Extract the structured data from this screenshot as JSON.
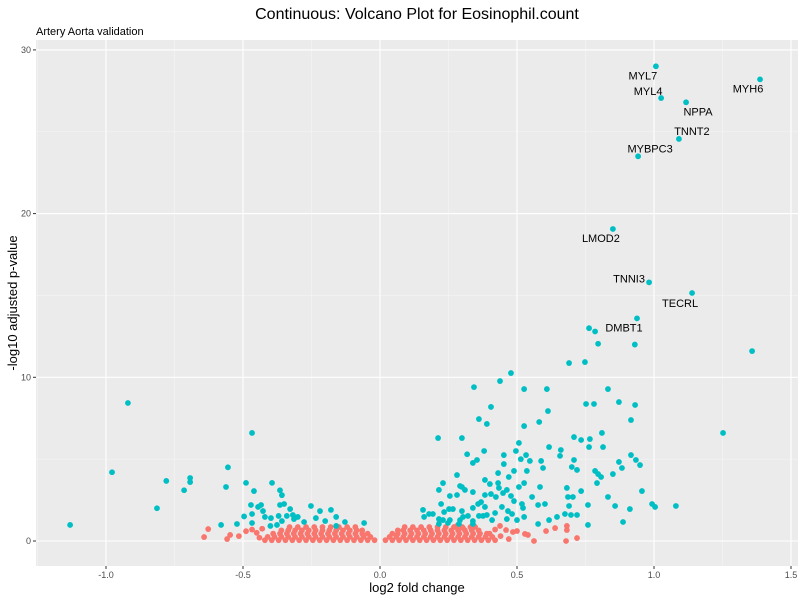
{
  "chart_data": {
    "type": "scatter",
    "title": "Continuous: Volcano Plot for Eosinophil.count",
    "subtitle": "Artery Aorta validation",
    "xlabel": "log2 fold change",
    "ylabel": "-log10 adjusted p-value",
    "xlim": [
      -1.25,
      1.53
    ],
    "ylim": [
      -1.5,
      30.5
    ],
    "x_ticks": [
      -1.0,
      -0.5,
      0.0,
      0.5,
      1.0,
      1.5
    ],
    "x_tick_labels": [
      "-1.0",
      "-0.5",
      "0.0",
      "0.5",
      "1.0",
      "1.5"
    ],
    "y_ticks": [
      0,
      10,
      20,
      30
    ],
    "y_tick_labels": [
      "0",
      "10",
      "20",
      "30"
    ],
    "grid": true,
    "legend": "none",
    "colors": {
      "significant": "#00BFC4",
      "not_significant": "#F8766D",
      "panel": "#EBEBEB"
    },
    "labeled_points": [
      {
        "label": "MYL7",
        "x": 1.007,
        "y": 29.0
      },
      {
        "label": "MYH6",
        "x": 1.387,
        "y": 28.2
      },
      {
        "label": "MYL4",
        "x": 1.026,
        "y": 27.06
      },
      {
        "label": "NPPA",
        "x": 1.117,
        "y": 26.8
      },
      {
        "label": "TNNT2",
        "x": 1.091,
        "y": 24.56
      },
      {
        "label": "MYBPC3",
        "x": 0.942,
        "y": 23.5
      },
      {
        "label": "LMOD2",
        "x": 0.85,
        "y": 19.06
      },
      {
        "label": "TNNI3",
        "x": 0.982,
        "y": 15.8
      },
      {
        "label": "TECRL",
        "x": 1.139,
        "y": 15.15
      },
      {
        "label": "DMBT1",
        "x": 0.938,
        "y": 13.6
      }
    ],
    "significant_points": [
      [
        0.763,
        13.0
      ],
      [
        0.785,
        12.8
      ],
      [
        0.796,
        12.05
      ],
      [
        0.93,
        12.0
      ],
      [
        1.358,
        11.6
      ],
      [
        -0.92,
        8.43
      ],
      [
        -0.467,
        6.6
      ],
      [
        -0.978,
        4.2
      ],
      [
        -0.555,
        4.5
      ],
      [
        -0.78,
        3.67
      ],
      [
        -0.693,
        3.85
      ],
      [
        -0.693,
        3.6
      ],
      [
        -0.715,
        3.1
      ],
      [
        -0.814,
        2.0
      ],
      [
        -1.131,
        0.98
      ],
      [
        -0.562,
        3.3
      ],
      [
        -0.489,
        3.55
      ],
      [
        -0.46,
        3.05
      ],
      [
        -0.394,
        3.55
      ],
      [
        -0.365,
        3.1
      ],
      [
        -0.358,
        2.8
      ],
      [
        -0.58,
        0.98
      ],
      [
        -0.522,
        1.04
      ],
      [
        -0.496,
        1.5
      ],
      [
        -0.471,
        2.2
      ],
      [
        -0.445,
        2.08
      ],
      [
        -0.434,
        2.2
      ],
      [
        -0.427,
        1.83
      ],
      [
        -0.467,
        1.65
      ],
      [
        -0.42,
        1.47
      ],
      [
        -0.398,
        1.4
      ],
      [
        -0.365,
        2.2
      ],
      [
        -0.35,
        2.26
      ],
      [
        -0.328,
        1.95
      ],
      [
        -0.37,
        1.53
      ],
      [
        -0.34,
        1.53
      ],
      [
        -0.318,
        1.59
      ],
      [
        -0.3,
        1.47
      ],
      [
        -0.277,
        1.16
      ],
      [
        -0.252,
        2.14
      ],
      [
        -0.219,
        1.83
      ],
      [
        -0.179,
        1.9
      ],
      [
        -0.234,
        1.4
      ],
      [
        -0.2,
        1.22
      ],
      [
        -0.16,
        1.47
      ],
      [
        -0.128,
        1.16
      ],
      [
        -0.058,
        1.1
      ],
      [
        -0.4,
        0.92
      ],
      [
        -0.16,
        0.92
      ],
      [
        -0.467,
        1.1
      ],
      [
        -0.358,
        1.22
      ],
      [
        -0.314,
        1.34
      ],
      [
        -0.376,
        0.98
      ],
      [
        0.69,
        10.87
      ],
      [
        0.748,
        10.93
      ],
      [
        0.478,
        10.26
      ],
      [
        0.438,
        9.77
      ],
      [
        0.343,
        9.4
      ],
      [
        0.526,
        9.28
      ],
      [
        0.609,
        9.28
      ],
      [
        0.832,
        9.28
      ],
      [
        0.752,
        8.37
      ],
      [
        0.781,
        8.37
      ],
      [
        0.872,
        8.49
      ],
      [
        0.931,
        8.31
      ],
      [
        0.405,
        8.19
      ],
      [
        0.613,
        7.94
      ],
      [
        0.361,
        7.45
      ],
      [
        0.39,
        7.15
      ],
      [
        0.581,
        7.27
      ],
      [
        0.526,
        7.02
      ],
      [
        0.916,
        7.39
      ],
      [
        1.252,
        6.6
      ],
      [
        0.81,
        6.6
      ],
      [
        0.212,
        6.29
      ],
      [
        0.299,
        6.29
      ],
      [
        0.708,
        6.35
      ],
      [
        0.734,
        6.17
      ],
      [
        0.766,
        6.23
      ],
      [
        0.763,
        5.74
      ],
      [
        0.814,
        5.74
      ],
      [
        0.507,
        5.99
      ],
      [
        0.617,
        5.74
      ],
      [
        0.66,
        5.56
      ],
      [
        0.657,
        5.2
      ],
      [
        0.38,
        5.5
      ],
      [
        0.496,
        5.5
      ],
      [
        0.318,
        5.3
      ],
      [
        0.452,
        5.25
      ],
      [
        0.533,
        5.25
      ],
      [
        0.514,
        5.0
      ],
      [
        0.354,
        4.95
      ],
      [
        0.339,
        4.77
      ],
      [
        0.547,
        4.89
      ],
      [
        0.588,
        4.89
      ],
      [
        0.708,
        4.95
      ],
      [
        0.916,
        5.25
      ],
      [
        0.934,
        4.95
      ],
      [
        0.949,
        4.64
      ],
      [
        0.872,
        4.83
      ],
      [
        0.883,
        4.46
      ],
      [
        0.452,
        4.7
      ],
      [
        0.7,
        4.52
      ],
      [
        0.595,
        4.46
      ],
      [
        0.719,
        4.34
      ],
      [
        0.536,
        4.28
      ],
      [
        0.489,
        4.28
      ],
      [
        0.431,
        4.15
      ],
      [
        0.281,
        4.03
      ],
      [
        0.785,
        4.28
      ],
      [
        0.796,
        4.09
      ],
      [
        0.807,
        3.91
      ],
      [
        0.792,
        3.54
      ],
      [
        0.85,
        4.09
      ],
      [
        0.47,
        3.91
      ],
      [
        0.383,
        3.73
      ],
      [
        0.401,
        3.48
      ],
      [
        0.431,
        3.54
      ],
      [
        0.23,
        3.54
      ],
      [
        0.215,
        3.12
      ],
      [
        0.292,
        3.36
      ],
      [
        0.299,
        3.3
      ],
      [
        0.31,
        3.12
      ],
      [
        0.339,
        2.99
      ],
      [
        0.434,
        3.24
      ],
      [
        0.463,
        3.12
      ],
      [
        0.526,
        3.54
      ],
      [
        0.507,
        3.3
      ],
      [
        0.584,
        3.3
      ],
      [
        0.682,
        3.24
      ],
      [
        0.734,
        3.05
      ],
      [
        0.956,
        3.05
      ],
      [
        0.255,
        2.75
      ],
      [
        0.281,
        2.81
      ],
      [
        0.383,
        2.81
      ],
      [
        0.405,
        2.87
      ],
      [
        0.423,
        2.69
      ],
      [
        0.449,
        2.93
      ],
      [
        0.478,
        2.75
      ],
      [
        0.489,
        2.44
      ],
      [
        0.555,
        2.69
      ],
      [
        0.686,
        2.69
      ],
      [
        0.704,
        2.69
      ],
      [
        0.832,
        2.69
      ],
      [
        0.223,
        2.26
      ],
      [
        0.358,
        2.26
      ],
      [
        0.369,
        2.38
      ],
      [
        0.383,
        2.08
      ],
      [
        0.445,
        2.08
      ],
      [
        0.518,
        2.26
      ],
      [
        0.577,
        2.2
      ],
      [
        0.602,
        2.26
      ],
      [
        0.69,
        2.14
      ],
      [
        0.759,
        2.2
      ],
      [
        0.858,
        2.14
      ],
      [
        0.993,
        2.26
      ],
      [
        1.004,
        2.08
      ],
      [
        1.08,
        2.14
      ],
      [
        0.912,
        1.95
      ],
      [
        0.157,
        1.9
      ],
      [
        0.179,
        1.65
      ],
      [
        0.193,
        1.65
      ],
      [
        0.234,
        1.77
      ],
      [
        0.252,
        1.95
      ],
      [
        0.266,
        1.95
      ],
      [
        0.299,
        1.83
      ],
      [
        0.339,
        2.02
      ],
      [
        0.303,
        1.47
      ],
      [
        0.321,
        1.53
      ],
      [
        0.361,
        1.53
      ],
      [
        0.376,
        1.53
      ],
      [
        0.39,
        1.59
      ],
      [
        0.42,
        1.71
      ],
      [
        0.467,
        1.83
      ],
      [
        0.482,
        1.65
      ],
      [
        0.522,
        2.02
      ],
      [
        0.526,
        1.47
      ],
      [
        0.463,
        1.34
      ],
      [
        0.5,
        1.28
      ],
      [
        0.617,
        1.28
      ],
      [
        0.646,
        1.47
      ],
      [
        0.675,
        1.65
      ],
      [
        0.697,
        1.59
      ],
      [
        0.719,
        1.59
      ],
      [
        0.759,
        0.98
      ],
      [
        0.887,
        1.16
      ],
      [
        0.577,
        1.04
      ],
      [
        0.161,
        1.47
      ],
      [
        0.215,
        1.34
      ],
      [
        0.23,
        1.28
      ],
      [
        0.255,
        1.28
      ],
      [
        0.292,
        1.28
      ],
      [
        0.339,
        1.22
      ],
      [
        0.409,
        1.28
      ],
      [
        0.215,
        1.04
      ],
      [
        0.248,
        1.1
      ],
      [
        0.288,
        1.04
      ],
      [
        0.339,
        1.04
      ]
    ],
    "not_significant_points": [
      [
        -0.642,
        0.24
      ],
      [
        -0.627,
        0.73
      ],
      [
        -0.558,
        0.12
      ],
      [
        -0.547,
        0.37
      ],
      [
        -0.515,
        0.3
      ],
      [
        -0.489,
        0.6
      ],
      [
        -0.467,
        0.7
      ],
      [
        -0.45,
        0.5
      ],
      [
        -0.44,
        0.2
      ],
      [
        -0.43,
        0.75
      ],
      [
        0.281,
        0.92
      ],
      [
        0.303,
        0.79
      ],
      [
        0.347,
        0.86
      ],
      [
        0.438,
        0.92
      ],
      [
        0.46,
        0.67
      ],
      [
        0.485,
        0.55
      ],
      [
        0.5,
        0.61
      ],
      [
        0.529,
        0.43
      ],
      [
        0.54,
        0.37
      ],
      [
        0.47,
        0.12
      ],
      [
        0.562,
        0.0
      ],
      [
        0.606,
        0.61
      ],
      [
        0.639,
        0.79
      ],
      [
        0.682,
        0.92
      ],
      [
        0.682,
        0.67
      ],
      [
        0.679,
        0.0
      ],
      [
        0.719,
        0.18
      ],
      [
        0.42,
        0.7
      ],
      [
        0.4,
        0.45
      ],
      [
        0.44,
        0.3
      ]
    ],
    "not_significant_rows": [
      {
        "y": 0.05,
        "x": [
          -0.42,
          -0.395,
          -0.37,
          -0.345,
          -0.32,
          -0.295,
          -0.27,
          -0.245,
          -0.22,
          -0.195,
          -0.17,
          -0.145,
          -0.12,
          -0.095,
          -0.07,
          -0.045,
          -0.02,
          0.02,
          0.045,
          0.07,
          0.095,
          0.12,
          0.145,
          0.17,
          0.195,
          0.22,
          0.245,
          0.27,
          0.295,
          0.32,
          0.345,
          0.37,
          0.395,
          0.42
        ]
      },
      {
        "y": 0.25,
        "x": [
          -0.41,
          -0.385,
          -0.36,
          -0.335,
          -0.31,
          -0.285,
          -0.26,
          -0.235,
          -0.21,
          -0.185,
          -0.16,
          -0.135,
          -0.11,
          -0.085,
          -0.06,
          -0.035,
          0.035,
          0.06,
          0.085,
          0.11,
          0.135,
          0.16,
          0.185,
          0.21,
          0.235,
          0.26,
          0.285,
          0.31,
          0.335,
          0.36,
          0.385,
          0.41
        ]
      },
      {
        "y": 0.45,
        "x": [
          -0.39,
          -0.365,
          -0.34,
          -0.315,
          -0.29,
          -0.265,
          -0.24,
          -0.215,
          -0.19,
          -0.165,
          -0.14,
          -0.115,
          -0.09,
          -0.065,
          -0.045,
          0.045,
          0.065,
          0.09,
          0.115,
          0.14,
          0.165,
          0.19,
          0.215,
          0.24,
          0.265,
          0.29,
          0.315,
          0.34,
          0.365,
          0.39
        ]
      },
      {
        "y": 0.65,
        "x": [
          -0.36,
          -0.335,
          -0.31,
          -0.285,
          -0.26,
          -0.235,
          -0.21,
          -0.185,
          -0.16,
          -0.135,
          -0.11,
          -0.085,
          -0.065,
          0.065,
          0.085,
          0.11,
          0.135,
          0.16,
          0.185,
          0.21,
          0.235,
          0.26,
          0.285,
          0.31,
          0.335,
          0.36
        ]
      },
      {
        "y": 0.85,
        "x": [
          -0.33,
          -0.3,
          -0.27,
          -0.24,
          -0.21,
          -0.18,
          -0.15,
          -0.12,
          -0.09,
          0.09,
          0.12,
          0.15,
          0.18,
          0.21,
          0.24,
          0.27,
          0.3,
          0.33
        ]
      }
    ]
  }
}
